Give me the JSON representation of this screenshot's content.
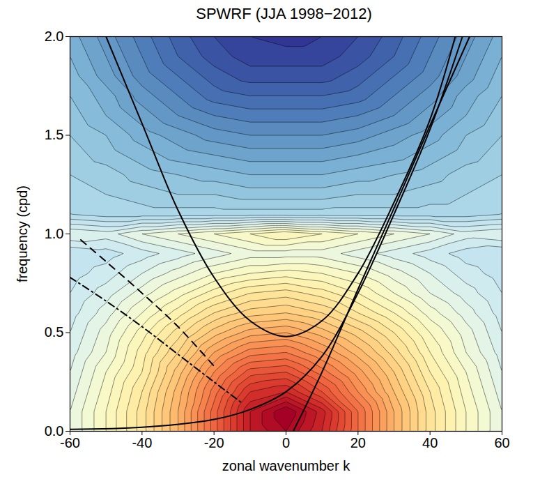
{
  "chart_data": {
    "type": "contour",
    "title": "SPWRF (JJA 1998−2012)",
    "x_label": "zonal wavenumber k",
    "y_label": "frequency (cpd)",
    "xlim": [
      -60,
      60
    ],
    "xticks": [
      -60,
      -40,
      -20,
      0,
      20,
      40,
      60
    ],
    "ylim": [
      0,
      2
    ],
    "yticks": [
      {
        "value": 0,
        "label": "0.0"
      },
      {
        "value": 0.5,
        "label": "0.5"
      },
      {
        "value": 1,
        "label": "1.0"
      },
      {
        "value": 1.5,
        "label": "1.5"
      },
      {
        "value": 2,
        "label": "2.0"
      }
    ],
    "x": [
      -60,
      -50,
      -40,
      -30,
      -20,
      -10,
      0,
      10,
      20,
      30,
      40,
      50,
      60
    ],
    "y": [
      0,
      0.1,
      0.2,
      0.3,
      0.4,
      0.5,
      0.6,
      0.7,
      0.8,
      0.9,
      1.0,
      1.1,
      1.2,
      1.3,
      1.4,
      1.5,
      1.6,
      1.7,
      1.8,
      1.9,
      2.0
    ],
    "values": [
      [
        5.0,
        5.6,
        6.3,
        7.2,
        8.3,
        9.4,
        9.8,
        9.2,
        8.2,
        7.2,
        6.3,
        5.6,
        5.0
      ],
      [
        5.0,
        5.6,
        6.3,
        7.2,
        8.3,
        9.4,
        10.0,
        9.3,
        8.2,
        7.2,
        6.3,
        5.6,
        5.0
      ],
      [
        4.9,
        5.5,
        6.2,
        7.1,
        8.1,
        9.0,
        9.2,
        8.6,
        7.8,
        7.0,
        6.2,
        5.5,
        4.9
      ],
      [
        4.8,
        5.4,
        6.0,
        6.9,
        7.8,
        8.5,
        8.6,
        8.1,
        7.5,
        6.8,
        6.0,
        5.4,
        4.8
      ],
      [
        4.7,
        5.2,
        5.9,
        6.6,
        7.4,
        7.9,
        8.0,
        7.6,
        7.1,
        6.5,
        5.8,
        5.2,
        4.7
      ],
      [
        4.6,
        5.1,
        5.7,
        6.3,
        6.9,
        7.3,
        7.4,
        7.1,
        6.7,
        6.2,
        5.6,
        5.1,
        4.6
      ],
      [
        4.5,
        4.9,
        5.4,
        5.9,
        6.4,
        6.7,
        6.8,
        6.6,
        6.2,
        5.8,
        5.3,
        4.9,
        4.5
      ],
      [
        4.4,
        4.7,
        5.1,
        5.5,
        5.9,
        6.2,
        6.3,
        6.1,
        5.8,
        5.4,
        5.0,
        4.7,
        4.4
      ],
      [
        4.3,
        4.5,
        4.8,
        5.1,
        5.4,
        5.6,
        5.7,
        5.6,
        5.4,
        5.1,
        4.8,
        4.5,
        4.3
      ],
      [
        4.2,
        4.3,
        4.5,
        4.7,
        4.9,
        5.1,
        5.1,
        5.1,
        4.9,
        4.7,
        4.5,
        4.3,
        4.2
      ],
      [
        4.8,
        4.7,
        5.0,
        5.2,
        5.4,
        5.6,
        5.8,
        5.6,
        5.4,
        5.2,
        5.0,
        4.7,
        4.8
      ],
      [
        4.0,
        3.9,
        3.9,
        3.9,
        3.9,
        3.9,
        3.9,
        3.9,
        3.9,
        3.9,
        3.9,
        3.9,
        4.0
      ],
      [
        3.9,
        3.8,
        3.7,
        3.6,
        3.6,
        3.5,
        3.5,
        3.5,
        3.6,
        3.6,
        3.7,
        3.8,
        3.9
      ],
      [
        3.8,
        3.7,
        3.5,
        3.4,
        3.3,
        3.2,
        3.2,
        3.2,
        3.3,
        3.4,
        3.5,
        3.7,
        3.8
      ],
      [
        3.7,
        3.5,
        3.3,
        3.1,
        3.0,
        2.9,
        2.9,
        2.9,
        3.0,
        3.1,
        3.3,
        3.5,
        3.7
      ],
      [
        3.6,
        3.4,
        3.1,
        2.9,
        2.7,
        2.6,
        2.6,
        2.6,
        2.7,
        2.9,
        3.1,
        3.4,
        3.6
      ],
      [
        3.5,
        3.2,
        2.9,
        2.6,
        2.4,
        2.3,
        2.3,
        2.3,
        2.4,
        2.6,
        2.9,
        3.2,
        3.5
      ],
      [
        3.4,
        3.1,
        2.7,
        2.4,
        2.1,
        2.0,
        2.0,
        2.0,
        2.1,
        2.4,
        2.7,
        3.1,
        3.4
      ],
      [
        3.3,
        2.9,
        2.5,
        2.2,
        1.9,
        1.7,
        1.7,
        1.7,
        1.9,
        2.2,
        2.5,
        2.9,
        3.3
      ],
      [
        3.2,
        2.8,
        2.4,
        2.0,
        1.7,
        1.5,
        1.5,
        1.5,
        1.7,
        2.0,
        2.4,
        2.8,
        3.2
      ],
      [
        3.1,
        2.7,
        2.3,
        1.9,
        1.6,
        1.4,
        1.3,
        1.4,
        1.6,
        1.9,
        2.3,
        2.7,
        3.1
      ]
    ],
    "curves": [
      {
        "color": "black",
        "line_style": "solid",
        "x": [
          2,
          10,
          20,
          30,
          40,
          51
        ],
        "y": [
          0,
          0.3,
          0.72,
          1.13,
          1.55,
          2.0
        ]
      },
      {
        "color": "black",
        "line_style": "solid",
        "x": [
          -60,
          -40,
          -20,
          -10,
          0,
          10,
          20,
          30,
          40,
          49
        ],
        "y": [
          0.01,
          0.02,
          0.06,
          0.11,
          0.2,
          0.38,
          0.7,
          1.1,
          1.53,
          2.0
        ]
      },
      {
        "color": "black",
        "line_style": "solid",
        "x": [
          -50,
          -40,
          -30,
          -20,
          -10,
          0,
          10,
          20,
          30,
          40,
          47
        ],
        "y": [
          2.0,
          1.56,
          1.12,
          0.78,
          0.56,
          0.48,
          0.56,
          0.8,
          1.16,
          1.58,
          2.0
        ]
      },
      {
        "color": "black",
        "line_style": "dashed",
        "x": [
          -57,
          -50,
          -40,
          -30,
          -20
        ],
        "y": [
          0.97,
          0.86,
          0.7,
          0.53,
          0.33
        ]
      },
      {
        "color": "black",
        "line_style": "dashdot",
        "x": [
          -60,
          -50,
          -40,
          -30,
          -20,
          -12
        ],
        "y": [
          0.78,
          0.66,
          0.53,
          0.39,
          0.25,
          0.14
        ]
      }
    ]
  }
}
